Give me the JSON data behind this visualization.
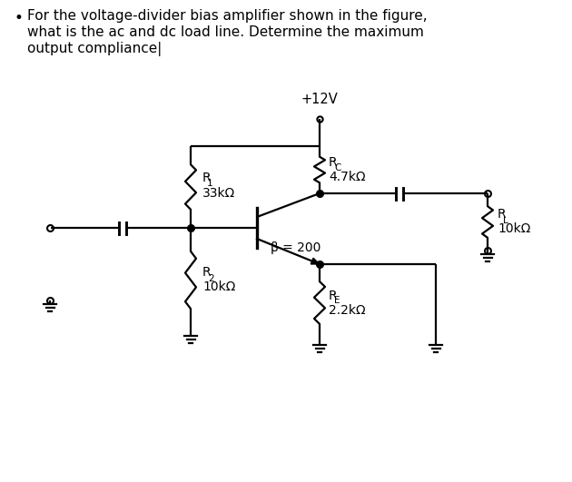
{
  "bg_color": "#ffffff",
  "text_color": "#000000",
  "bullet_text_line1": "For the voltage-divider bias amplifier shown in the figure,",
  "bullet_text_line2": "what is the ac and dc load line. Determine the maximum",
  "bullet_text_line3": "output compliance|",
  "vcc_label": "+12V",
  "R1_label": "R",
  "R1_sub": "1",
  "R1_val": "33kΩ",
  "R2_label": "R",
  "R2_sub": "2",
  "R2_val": "10kΩ",
  "RC_label": "R",
  "RC_sub": "C",
  "RC_val": "4.7kΩ",
  "RE_label": "R",
  "RE_sub": "E",
  "RE_val": "2.2kΩ",
  "RL_label": "R",
  "RL_sub": "L",
  "RL_val": "10kΩ",
  "beta_label": "β = 200",
  "line_color": "#000000",
  "figsize": [
    6.3,
    5.31
  ],
  "dpi": 100
}
